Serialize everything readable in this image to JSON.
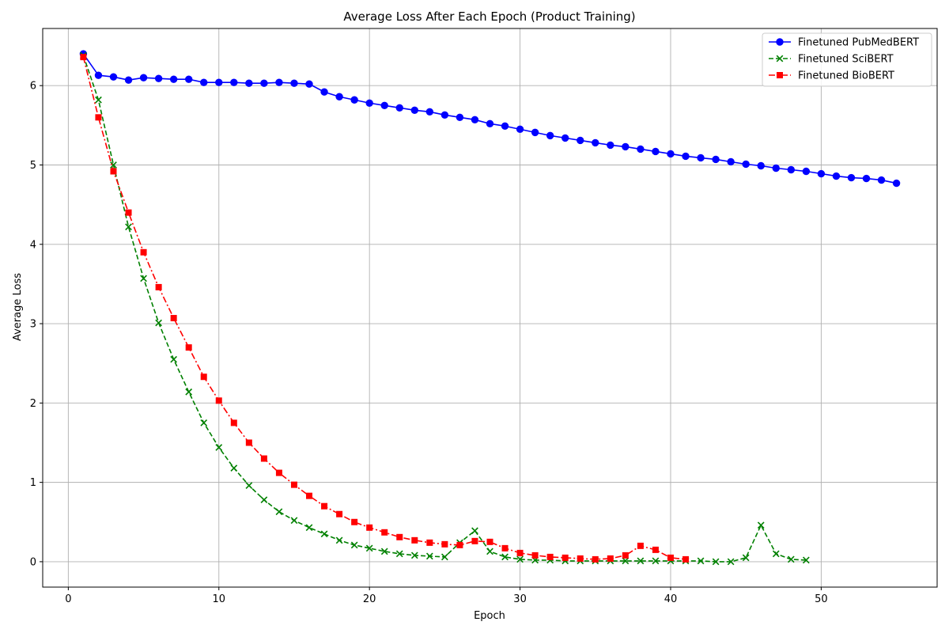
{
  "chart_data": {
    "type": "line",
    "title": "Average Loss After Each Epoch (Product Training)",
    "xlabel": "Epoch",
    "ylabel": "Average Loss",
    "xlim": [
      -1.7,
      57.7
    ],
    "ylim": [
      -0.32,
      6.72
    ],
    "xticks": [
      0,
      10,
      20,
      30,
      40,
      50
    ],
    "yticks": [
      0,
      1,
      2,
      3,
      4,
      5,
      6
    ],
    "grid": true,
    "legend_position": "top-right",
    "series": [
      {
        "name": "Finetuned PubMedBERT",
        "color": "#0000ff",
        "marker": "circle",
        "line_style": "solid",
        "x": [
          1,
          2,
          3,
          4,
          5,
          6,
          7,
          8,
          9,
          10,
          11,
          12,
          13,
          14,
          15,
          16,
          17,
          18,
          19,
          20,
          21,
          22,
          23,
          24,
          25,
          26,
          27,
          28,
          29,
          30,
          31,
          32,
          33,
          34,
          35,
          36,
          37,
          38,
          39,
          40,
          41,
          42,
          43,
          44,
          45,
          46,
          47,
          48,
          49,
          50,
          51,
          52,
          53,
          54,
          55
        ],
        "values": [
          6.4,
          6.13,
          6.11,
          6.07,
          6.1,
          6.09,
          6.08,
          6.08,
          6.04,
          6.04,
          6.04,
          6.03,
          6.03,
          6.04,
          6.03,
          6.02,
          5.92,
          5.86,
          5.82,
          5.78,
          5.75,
          5.72,
          5.69,
          5.67,
          5.63,
          5.6,
          5.57,
          5.52,
          5.49,
          5.45,
          5.41,
          5.37,
          5.34,
          5.31,
          5.28,
          5.25,
          5.23,
          5.2,
          5.17,
          5.14,
          5.11,
          5.09,
          5.07,
          5.04,
          5.01,
          4.99,
          4.96,
          4.94,
          4.92,
          4.89,
          4.86,
          4.84,
          4.83,
          4.81,
          4.77
        ]
      },
      {
        "name": "Finetuned SciBERT",
        "color": "#008000",
        "marker": "x",
        "line_style": "dashed",
        "x": [
          1,
          2,
          3,
          4,
          5,
          6,
          7,
          8,
          9,
          10,
          11,
          12,
          13,
          14,
          15,
          16,
          17,
          18,
          19,
          20,
          21,
          22,
          23,
          24,
          25,
          26,
          27,
          28,
          29,
          30,
          31,
          32,
          33,
          34,
          35,
          36,
          37,
          38,
          39,
          40,
          41,
          42,
          43,
          44,
          45,
          46,
          47,
          48,
          49
        ],
        "values": [
          6.38,
          5.82,
          5.0,
          4.22,
          3.57,
          3.01,
          2.55,
          2.14,
          1.75,
          1.44,
          1.18,
          0.96,
          0.78,
          0.63,
          0.52,
          0.43,
          0.35,
          0.27,
          0.21,
          0.17,
          0.13,
          0.1,
          0.08,
          0.07,
          0.06,
          0.24,
          0.39,
          0.13,
          0.06,
          0.03,
          0.02,
          0.02,
          0.01,
          0.01,
          0.01,
          0.01,
          0.01,
          0.01,
          0.01,
          0.01,
          0.01,
          0.01,
          0.0,
          0.0,
          0.05,
          0.46,
          0.1,
          0.03,
          0.02
        ]
      },
      {
        "name": "Finetuned BioBERT",
        "color": "#ff0000",
        "marker": "square",
        "line_style": "dashdot",
        "x": [
          1,
          2,
          3,
          4,
          5,
          6,
          7,
          8,
          9,
          10,
          11,
          12,
          13,
          14,
          15,
          16,
          17,
          18,
          19,
          20,
          21,
          22,
          23,
          24,
          25,
          26,
          27,
          28,
          29,
          30,
          31,
          32,
          33,
          34,
          35,
          36,
          37,
          38,
          39,
          40,
          41
        ],
        "values": [
          6.36,
          5.6,
          4.92,
          4.4,
          3.9,
          3.46,
          3.07,
          2.7,
          2.33,
          2.03,
          1.75,
          1.5,
          1.3,
          1.12,
          0.97,
          0.83,
          0.7,
          0.6,
          0.5,
          0.43,
          0.37,
          0.31,
          0.27,
          0.24,
          0.22,
          0.21,
          0.26,
          0.25,
          0.17,
          0.11,
          0.08,
          0.06,
          0.05,
          0.04,
          0.03,
          0.04,
          0.08,
          0.2,
          0.15,
          0.05,
          0.03
        ]
      }
    ]
  }
}
